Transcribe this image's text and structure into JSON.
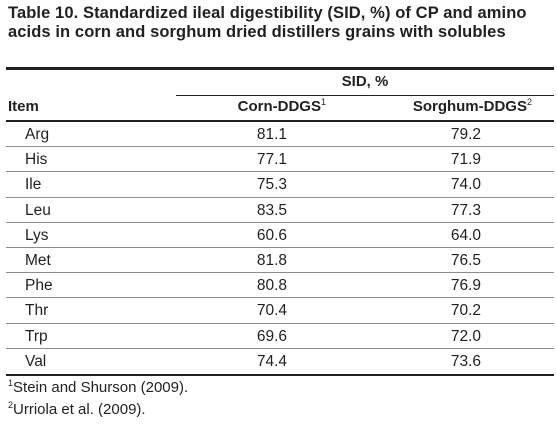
{
  "table": {
    "title": "Table 10. Standardized ileal digestibility (SID, %) of CP and amino acids in corn and sorghum dried distillers grains with solubles",
    "group_header": "SID, %",
    "columns": {
      "item": "Item",
      "corn": "Corn-DDGS",
      "corn_ref": "1",
      "sorghum": "Sorghum-DDGS",
      "sorghum_ref": "2"
    },
    "rows": [
      {
        "item": "Arg",
        "corn": "81.1",
        "sorghum": "79.2"
      },
      {
        "item": "His",
        "corn": "77.1",
        "sorghum": "71.9"
      },
      {
        "item": "Ile",
        "corn": "75.3",
        "sorghum": "74.0"
      },
      {
        "item": "Leu",
        "corn": "83.5",
        "sorghum": "77.3"
      },
      {
        "item": "Lys",
        "corn": "60.6",
        "sorghum": "64.0"
      },
      {
        "item": "Met",
        "corn": "81.8",
        "sorghum": "76.5"
      },
      {
        "item": "Phe",
        "corn": "80.8",
        "sorghum": "76.9"
      },
      {
        "item": "Thr",
        "corn": "70.4",
        "sorghum": "70.2"
      },
      {
        "item": "Trp",
        "corn": "69.6",
        "sorghum": "72.0"
      },
      {
        "item": "Val",
        "corn": "74.4",
        "sorghum": "73.6"
      }
    ],
    "footnotes": [
      {
        "mark": "1",
        "text": "Stein and Shurson (2009)."
      },
      {
        "mark": "2",
        "text": "Urriola et al. (2009)."
      }
    ]
  }
}
